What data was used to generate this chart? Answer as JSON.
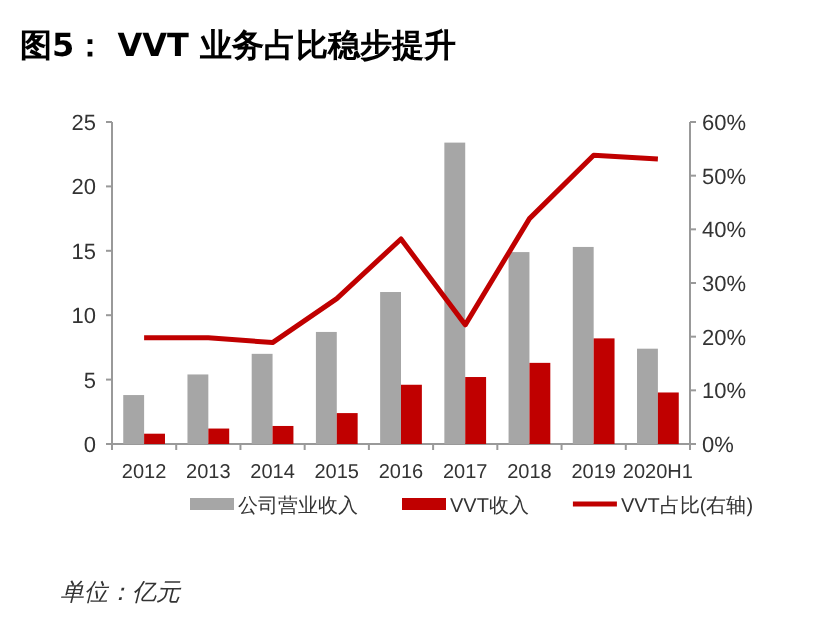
{
  "chart_data": {
    "type": "bar",
    "title": "图5：  VVT 业务占比稳步提升",
    "annotations": [
      "单位：亿元"
    ],
    "categories": [
      "2012",
      "2013",
      "2014",
      "2015",
      "2016",
      "2017",
      "2018",
      "2019",
      "2020H1"
    ],
    "series": [
      {
        "name": "公司营业收入",
        "color": "#a6a6a6",
        "values": [
          3.8,
          5.4,
          7.0,
          8.7,
          11.8,
          23.4,
          14.9,
          15.3,
          7.4
        ]
      },
      {
        "name": "VVT收入",
        "color": "#c00000",
        "values": [
          0.8,
          1.2,
          1.4,
          2.4,
          4.6,
          5.2,
          6.3,
          8.2,
          4.0
        ]
      },
      {
        "name": "VVT占比(右轴)",
        "type": "line",
        "axis": "y2",
        "color": "#c00000",
        "marker": "none",
        "values": [
          19.8,
          19.8,
          18.9,
          27.1,
          38.2,
          22.2,
          42.0,
          53.8,
          53.1
        ]
      }
    ],
    "ylim": [
      0,
      25
    ],
    "yticks": [
      0,
      5,
      10,
      15,
      20,
      25
    ],
    "y2lim": [
      0,
      60
    ],
    "y2ticks": [
      {
        "value": 0,
        "label": "0%"
      },
      {
        "value": 10,
        "label": "10%"
      },
      {
        "value": 20,
        "label": "20%"
      },
      {
        "value": 30,
        "label": "30%"
      },
      {
        "value": 40,
        "label": "40%"
      },
      {
        "value": 50,
        "label": "50%"
      },
      {
        "value": 60,
        "label": "60%"
      }
    ],
    "legend": "bottom",
    "grid": false
  }
}
